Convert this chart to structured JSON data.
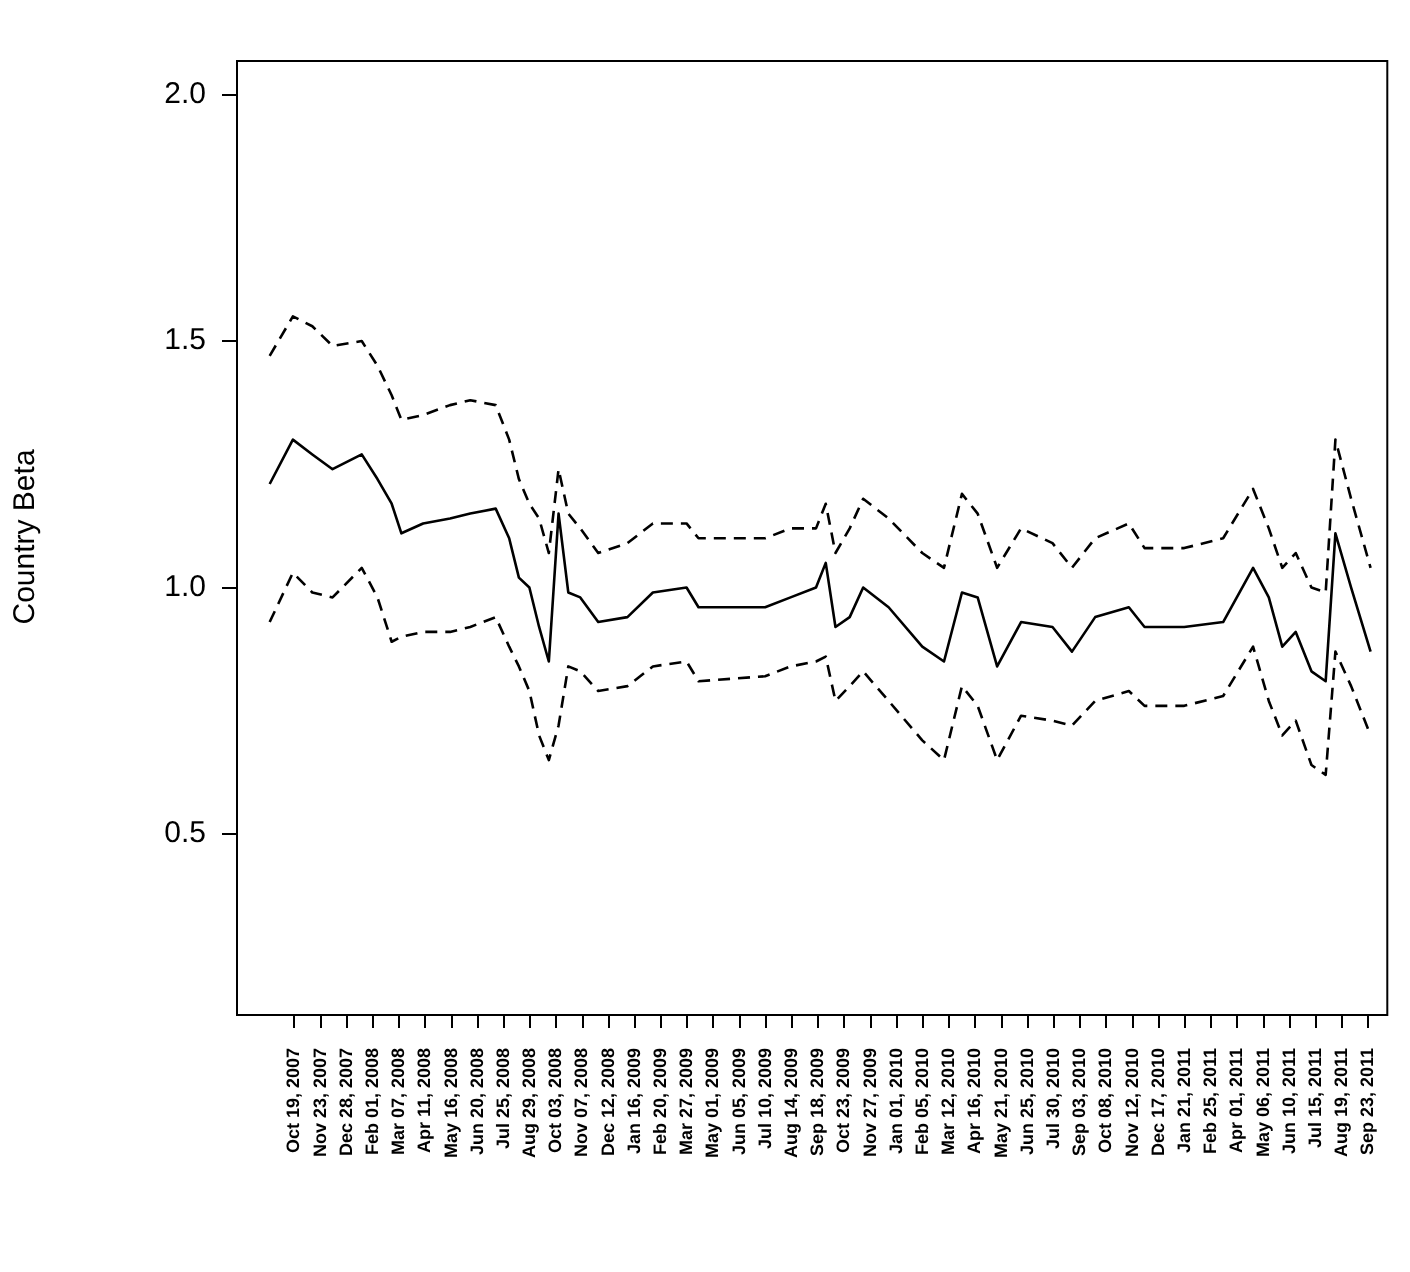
{
  "chart_data": {
    "type": "line",
    "ylabel": "Country Beta",
    "marker": "none",
    "grid": false,
    "x": [
      "2007-09-16",
      "2007-10-17",
      "2007-11-12",
      "2007-12-09",
      "2008-01-17",
      "2008-02-07",
      "2008-02-26",
      "2008-03-10",
      "2008-04-08",
      "2008-05-14",
      "2008-06-10",
      "2008-07-14",
      "2008-08-01",
      "2008-08-14",
      "2008-08-28",
      "2008-09-10",
      "2008-09-23",
      "2008-10-06",
      "2008-10-19",
      "2008-11-04",
      "2008-11-28",
      "2009-01-06",
      "2009-02-09",
      "2009-03-26",
      "2009-04-11",
      "2009-07-09",
      "2009-08-12",
      "2009-09-15",
      "2009-09-28",
      "2009-10-11",
      "2009-10-30",
      "2009-11-17",
      "2009-12-21",
      "2010-02-04",
      "2010-03-05",
      "2010-03-29",
      "2010-04-19",
      "2010-05-15",
      "2010-06-16",
      "2010-07-28",
      "2010-08-23",
      "2010-09-23",
      "2010-11-07",
      "2010-11-28",
      "2011-01-20",
      "2011-03-13",
      "2011-04-22",
      "2011-05-13",
      "2011-05-31",
      "2011-06-18",
      "2011-07-09",
      "2011-07-28",
      "2011-08-10",
      "2011-08-31",
      "2011-09-26"
    ],
    "series": [
      {
        "color": "#000000",
        "line_style": "solid",
        "values": [
          1.21,
          1.3,
          1.27,
          1.24,
          1.27,
          1.22,
          1.17,
          1.11,
          1.13,
          1.14,
          1.15,
          1.16,
          1.1,
          1.02,
          1.0,
          0.92,
          0.85,
          1.15,
          0.99,
          0.98,
          0.93,
          0.94,
          0.99,
          1.0,
          0.96,
          0.96,
          0.98,
          1.0,
          1.05,
          0.92,
          0.94,
          1.0,
          0.96,
          0.88,
          0.85,
          0.99,
          0.98,
          0.84,
          0.93,
          0.92,
          0.87,
          0.94,
          0.96,
          0.92,
          0.92,
          0.93,
          1.04,
          0.98,
          0.88,
          0.91,
          0.83,
          0.81,
          1.11,
          1.0,
          0.87
        ]
      },
      {
        "color": "#000000",
        "line_style": "dashed",
        "values": [
          1.47,
          1.55,
          1.53,
          1.49,
          1.5,
          1.45,
          1.39,
          1.34,
          1.35,
          1.37,
          1.38,
          1.37,
          1.3,
          1.22,
          1.17,
          1.14,
          1.07,
          1.24,
          1.15,
          1.12,
          1.07,
          1.09,
          1.13,
          1.13,
          1.1,
          1.1,
          1.12,
          1.12,
          1.17,
          1.07,
          1.12,
          1.18,
          1.14,
          1.07,
          1.04,
          1.19,
          1.15,
          1.04,
          1.12,
          1.09,
          1.04,
          1.1,
          1.13,
          1.08,
          1.08,
          1.1,
          1.2,
          1.12,
          1.04,
          1.07,
          1.0,
          0.99,
          1.3,
          1.18,
          1.04
        ]
      },
      {
        "color": "#000000",
        "line_style": "dashed",
        "values": [
          0.93,
          1.03,
          0.99,
          0.98,
          1.04,
          0.98,
          0.89,
          0.9,
          0.91,
          0.91,
          0.92,
          0.94,
          0.88,
          0.84,
          0.79,
          0.7,
          0.65,
          0.72,
          0.84,
          0.83,
          0.79,
          0.8,
          0.84,
          0.85,
          0.81,
          0.82,
          0.84,
          0.85,
          0.86,
          0.77,
          0.8,
          0.83,
          0.77,
          0.69,
          0.65,
          0.8,
          0.76,
          0.65,
          0.74,
          0.73,
          0.72,
          0.77,
          0.79,
          0.76,
          0.76,
          0.78,
          0.88,
          0.77,
          0.7,
          0.73,
          0.64,
          0.62,
          0.87,
          0.8,
          0.7
        ]
      }
    ],
    "xlim": [
      "2007-08-02",
      "2011-10-17"
    ],
    "xticks": [
      {
        "value": "2007-10-19",
        "label": "Oct 19, 2007"
      },
      {
        "value": "2007-11-23",
        "label": "Nov 23, 2007"
      },
      {
        "value": "2007-12-28",
        "label": "Dec 28, 2007"
      },
      {
        "value": "2008-02-01",
        "label": "Feb 01, 2008"
      },
      {
        "value": "2008-03-07",
        "label": "Mar 07, 2008"
      },
      {
        "value": "2008-04-11",
        "label": "Apr 11, 2008"
      },
      {
        "value": "2008-05-16",
        "label": "May 16, 2008"
      },
      {
        "value": "2008-06-20",
        "label": "Jun 20, 2008"
      },
      {
        "value": "2008-07-25",
        "label": "Jul 25, 2008"
      },
      {
        "value": "2008-08-29",
        "label": "Aug 29, 2008"
      },
      {
        "value": "2008-10-03",
        "label": "Oct 03, 2008"
      },
      {
        "value": "2008-11-07",
        "label": "Nov 07, 2008"
      },
      {
        "value": "2008-12-12",
        "label": "Dec 12, 2008"
      },
      {
        "value": "2009-01-16",
        "label": "Jan 16, 2009"
      },
      {
        "value": "2009-02-20",
        "label": "Feb 20, 2009"
      },
      {
        "value": "2009-03-27",
        "label": "Mar 27, 2009"
      },
      {
        "value": "2009-05-01",
        "label": "May 01, 2009"
      },
      {
        "value": "2009-06-05",
        "label": "Jun 05, 2009"
      },
      {
        "value": "2009-07-10",
        "label": "Jul 10, 2009"
      },
      {
        "value": "2009-08-14",
        "label": "Aug 14, 2009"
      },
      {
        "value": "2009-09-18",
        "label": "Sep 18, 2009"
      },
      {
        "value": "2009-10-23",
        "label": "Oct 23, 2009"
      },
      {
        "value": "2009-11-27",
        "label": "Nov 27, 2009"
      },
      {
        "value": "2010-01-01",
        "label": "Jan 01, 2010"
      },
      {
        "value": "2010-02-05",
        "label": "Feb 05, 2010"
      },
      {
        "value": "2010-03-12",
        "label": "Mar 12, 2010"
      },
      {
        "value": "2010-04-16",
        "label": "Apr 16, 2010"
      },
      {
        "value": "2010-05-21",
        "label": "May 21, 2010"
      },
      {
        "value": "2010-06-25",
        "label": "Jun 25, 2010"
      },
      {
        "value": "2010-07-30",
        "label": "Jul 30, 2010"
      },
      {
        "value": "2010-09-03",
        "label": "Sep 03, 2010"
      },
      {
        "value": "2010-10-08",
        "label": "Oct 08, 2010"
      },
      {
        "value": "2010-11-12",
        "label": "Nov 12, 2010"
      },
      {
        "value": "2010-12-17",
        "label": "Dec 17, 2010"
      },
      {
        "value": "2011-01-21",
        "label": "Jan 21, 2011"
      },
      {
        "value": "2011-02-25",
        "label": "Feb 25, 2011"
      },
      {
        "value": "2011-04-01",
        "label": "Apr 01, 2011"
      },
      {
        "value": "2011-05-06",
        "label": "May 06, 2011"
      },
      {
        "value": "2011-06-10",
        "label": "Jun 10, 2011"
      },
      {
        "value": "2011-07-15",
        "label": "Jul 15, 2011"
      },
      {
        "value": "2011-08-19",
        "label": "Aug 19, 2011"
      },
      {
        "value": "2011-09-23",
        "label": "Sep 23, 2011"
      }
    ],
    "ylim": [
      0.135,
      2.07
    ],
    "yticks": [
      {
        "value": 0.5,
        "label": "0.5"
      },
      {
        "value": 1,
        "label": "1.0"
      },
      {
        "value": 1.5,
        "label": "1.5"
      },
      {
        "value": 2,
        "label": "2.0"
      }
    ]
  }
}
